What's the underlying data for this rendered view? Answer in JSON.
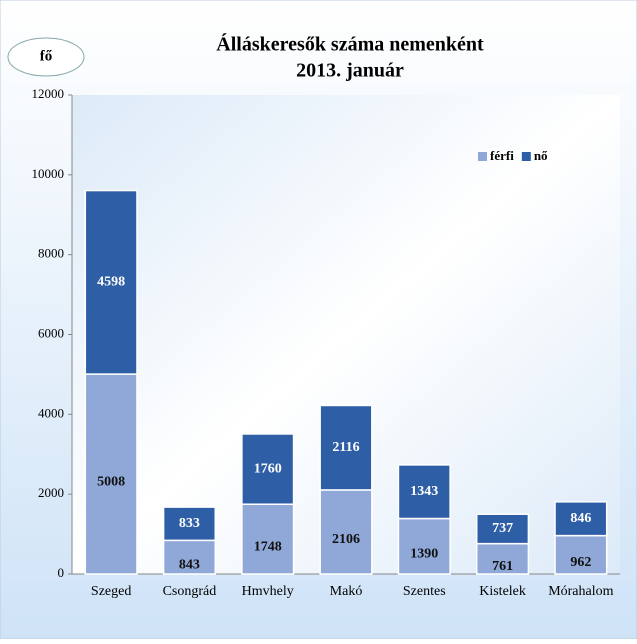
{
  "chart_data": {
    "type": "stacked_bar",
    "title": "Álláskeresők száma nemenként",
    "subtitle": "2013. január",
    "y_label": "fő",
    "categories": [
      "Szeged",
      "Csongrád",
      "Hmvhely",
      "Makó",
      "Szentes",
      "Kistelek",
      "Mórahalom"
    ],
    "series": [
      {
        "name": "férfi",
        "color": "#8fa8d8",
        "values": [
          5008,
          843,
          1748,
          2106,
          1390,
          761,
          962
        ]
      },
      {
        "name": "nő",
        "color": "#2e5ea6",
        "values": [
          4598,
          833,
          1760,
          2116,
          1343,
          737,
          846
        ]
      }
    ],
    "ylim": [
      0,
      12000
    ],
    "yticks": [
      0,
      2000,
      4000,
      6000,
      8000,
      10000,
      12000
    ],
    "legend": "upper right"
  }
}
